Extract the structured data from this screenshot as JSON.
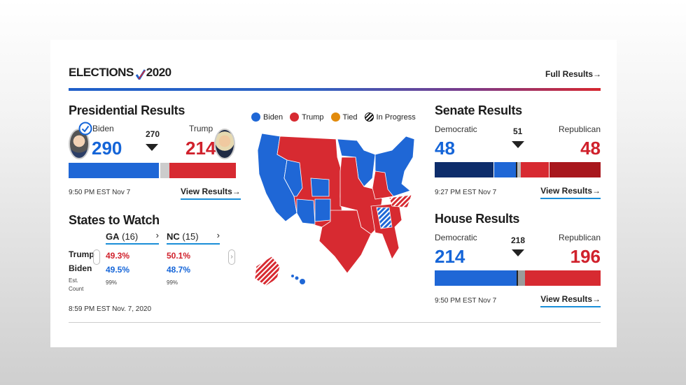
{
  "header": {
    "logo_left": "ELECTIONS",
    "logo_right": "2020",
    "full_results": "Full Results→"
  },
  "presidential": {
    "title": "Presidential Results",
    "biden": {
      "name": "Biden",
      "votes": "290"
    },
    "trump": {
      "name": "Trump",
      "votes": "214"
    },
    "threshold": "270",
    "bar": {
      "biden_fraction": 0.539,
      "trump_fraction": 0.3978,
      "biden_color": "#1f67d6",
      "trump_color": "#d72a31"
    },
    "time": "9:50 PM EST Nov 7",
    "view": "View Results→"
  },
  "states": {
    "title": "States to Watch",
    "columns": [
      {
        "state": "GA",
        "ev": "(16)",
        "trump": "49.3%",
        "biden": "49.5%",
        "count": "99%"
      },
      {
        "state": "NC",
        "ev": "(15)",
        "trump": "50.1%",
        "biden": "48.7%",
        "count": "99%"
      }
    ],
    "row_labels": {
      "trump": "Trump",
      "biden": "Biden",
      "count": "Est. Count"
    },
    "chevron": "›",
    "time": "8:59 PM EST Nov. 7, 2020"
  },
  "map_legend": [
    {
      "label": "Biden",
      "color": "#1f67d6"
    },
    {
      "label": "Trump",
      "color": "#d72a31"
    },
    {
      "label": "Tied",
      "color": "#e28b0c"
    },
    {
      "label": "In Progress",
      "color": "#111111"
    }
  ],
  "senate": {
    "title": "Senate Results",
    "dem_label": "Democratic",
    "rep_label": "Republican",
    "dem": "48",
    "rep": "48",
    "threshold": "51",
    "time": "9:27 PM EST Nov 7",
    "view": "View Results→"
  },
  "house": {
    "title": "House Results",
    "dem_label": "Democratic",
    "rep_label": "Republican",
    "dem": "214",
    "rep": "196",
    "threshold": "218",
    "time": "9:50 PM EST Nov 7",
    "view": "View Results→"
  }
}
